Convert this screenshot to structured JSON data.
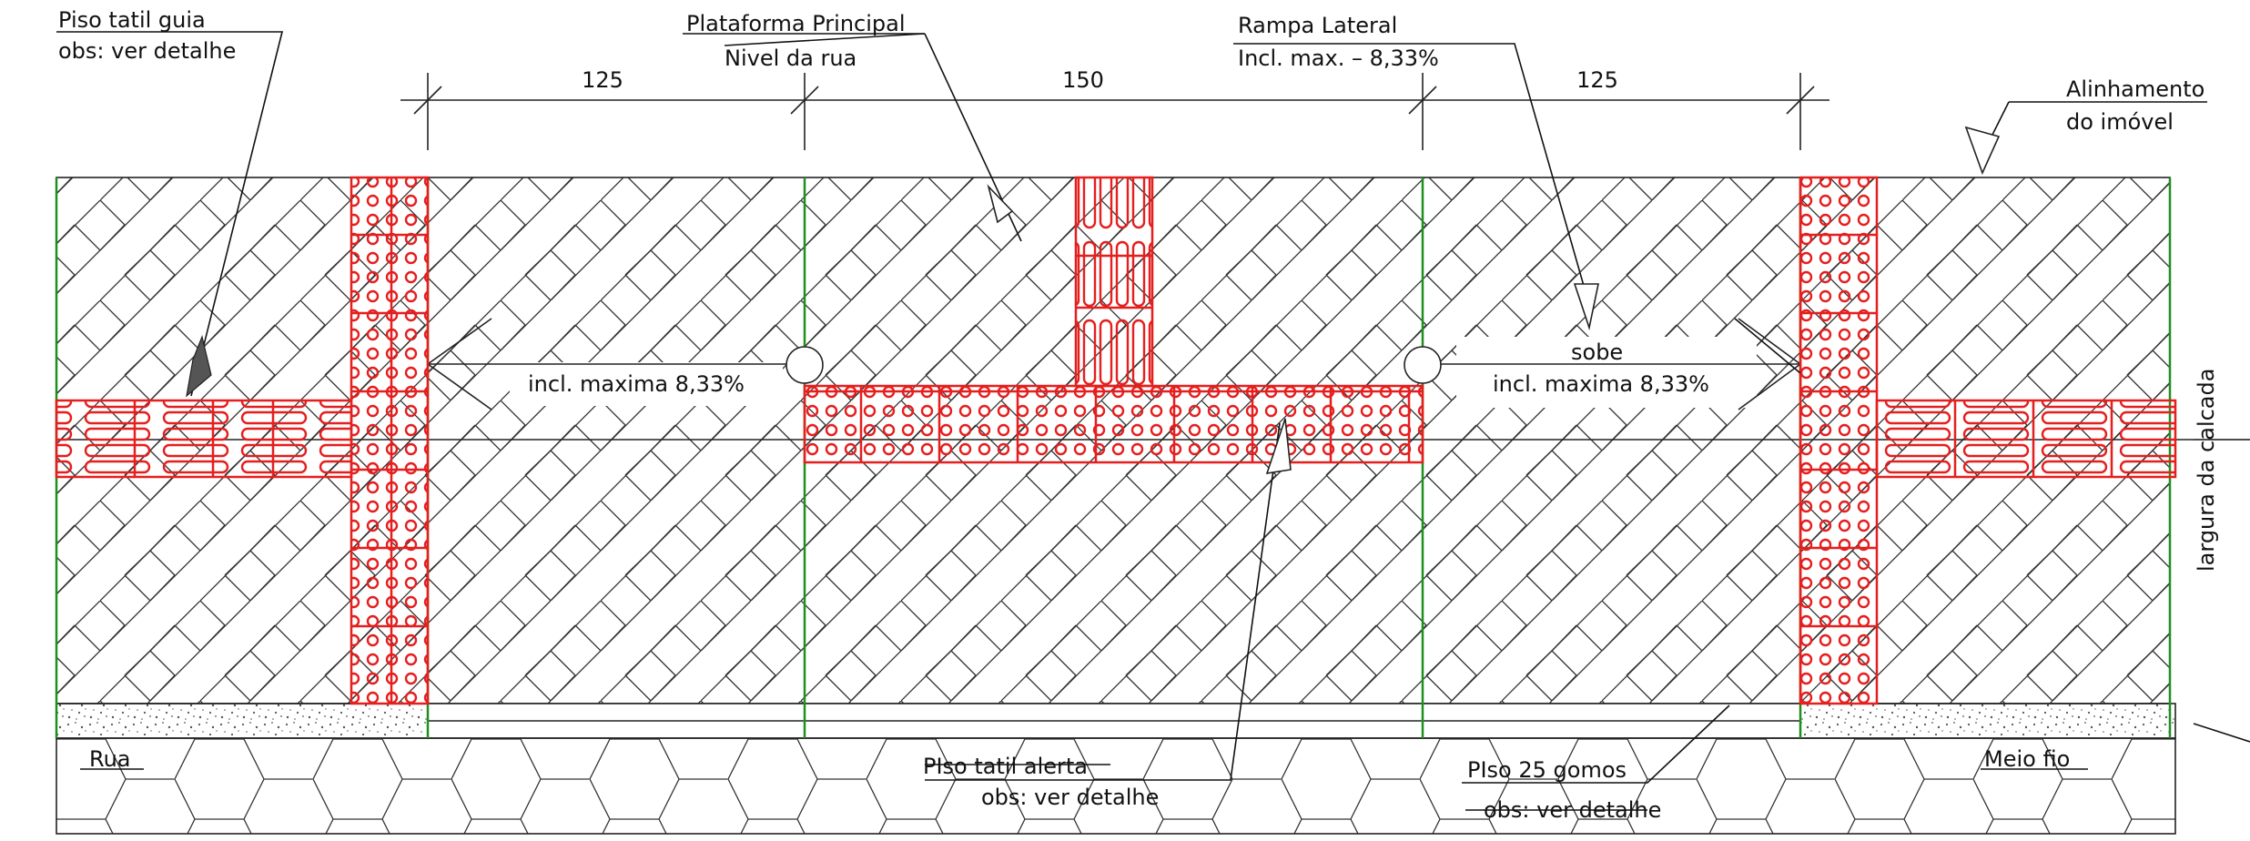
{
  "labels": {
    "piso_guia_line1": "Piso tatil guia",
    "piso_guia_line2": "obs: ver detalhe",
    "plataforma_line1": "Plataforma Principal",
    "plataforma_line2": "Nivel da rua",
    "rampa_line1": "Rampa Lateral",
    "rampa_line2": "Incl. max. – 8,33%",
    "alinhamento_line1": "Alinhamento",
    "alinhamento_line2": "do imóvel",
    "incl_left": "incl. maxima 8,33%",
    "sobe": "sobe",
    "incl_right": "incl. maxima 8,33%",
    "largura": "largura da calcada",
    "rua": "Rua",
    "alerta_line1": "PIso tatil alerta",
    "alerta_line2": "obs: ver detalhe",
    "piso25_line1": "PIso 25 gomos",
    "piso25_line2": "obs: ver detalhe",
    "meio_fio": "Meio fio"
  },
  "dimensions": {
    "left": "125",
    "center": "150",
    "right": "125"
  },
  "colors": {
    "tactile": "#e51e1e",
    "ramp_lines": "#1f8f1f",
    "linework": "#222222"
  }
}
